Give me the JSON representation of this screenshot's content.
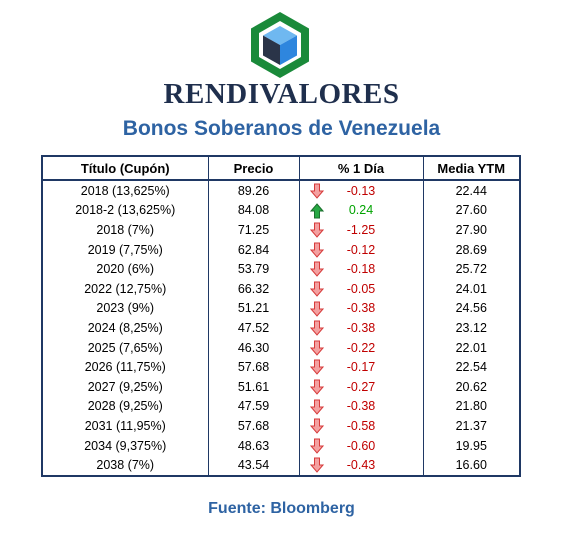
{
  "brand": "RENDIVALORES",
  "subtitle": "Bonos Soberanos de Venezuela",
  "colors": {
    "brand_text": "#1f2f4d",
    "subtitle": "#2e63a3",
    "table_border": "#1f3864",
    "negative": "#c00000",
    "positive": "#00a300",
    "logo_green": "#1a8a3a",
    "logo_blue": "#2e86de"
  },
  "table": {
    "headers": [
      "Título (Cupón)",
      "Precio",
      "% 1 Día",
      "Media YTM"
    ],
    "rows": [
      {
        "title": "2018 (13,625%)",
        "price": "89.26",
        "change": "-0.13",
        "direction": "down",
        "ytm": "22.44"
      },
      {
        "title": "2018-2 (13,625%)",
        "price": "84.08",
        "change": "0.24",
        "direction": "up",
        "ytm": "27.60"
      },
      {
        "title": "2018 (7%)",
        "price": "71.25",
        "change": "-1.25",
        "direction": "down",
        "ytm": "27.90"
      },
      {
        "title": "2019 (7,75%)",
        "price": "62.84",
        "change": "-0.12",
        "direction": "down",
        "ytm": "28.69"
      },
      {
        "title": "2020 (6%)",
        "price": "53.79",
        "change": "-0.18",
        "direction": "down",
        "ytm": "25.72"
      },
      {
        "title": "2022 (12,75%)",
        "price": "66.32",
        "change": "-0.05",
        "direction": "down",
        "ytm": "24.01"
      },
      {
        "title": "2023 (9%)",
        "price": "51.21",
        "change": "-0.38",
        "direction": "down",
        "ytm": "24.56"
      },
      {
        "title": "2024 (8,25%)",
        "price": "47.52",
        "change": "-0.38",
        "direction": "down",
        "ytm": "23.12"
      },
      {
        "title": "2025 (7,65%)",
        "price": "46.30",
        "change": "-0.22",
        "direction": "down",
        "ytm": "22.01"
      },
      {
        "title": "2026 (11,75%)",
        "price": "57.68",
        "change": "-0.17",
        "direction": "down",
        "ytm": "22.54"
      },
      {
        "title": "2027 (9,25%)",
        "price": "51.61",
        "change": "-0.27",
        "direction": "down",
        "ytm": "20.62"
      },
      {
        "title": "2028 (9,25%)",
        "price": "47.59",
        "change": "-0.38",
        "direction": "down",
        "ytm": "21.80"
      },
      {
        "title": "2031 (11,95%)",
        "price": "57.68",
        "change": "-0.58",
        "direction": "down",
        "ytm": "21.37"
      },
      {
        "title": "2034 (9,375%)",
        "price": "48.63",
        "change": "-0.60",
        "direction": "down",
        "ytm": "19.95"
      },
      {
        "title": "2038 (7%)",
        "price": "43.54",
        "change": "-0.43",
        "direction": "down",
        "ytm": "16.60"
      }
    ]
  },
  "source": "Fuente: Bloomberg"
}
